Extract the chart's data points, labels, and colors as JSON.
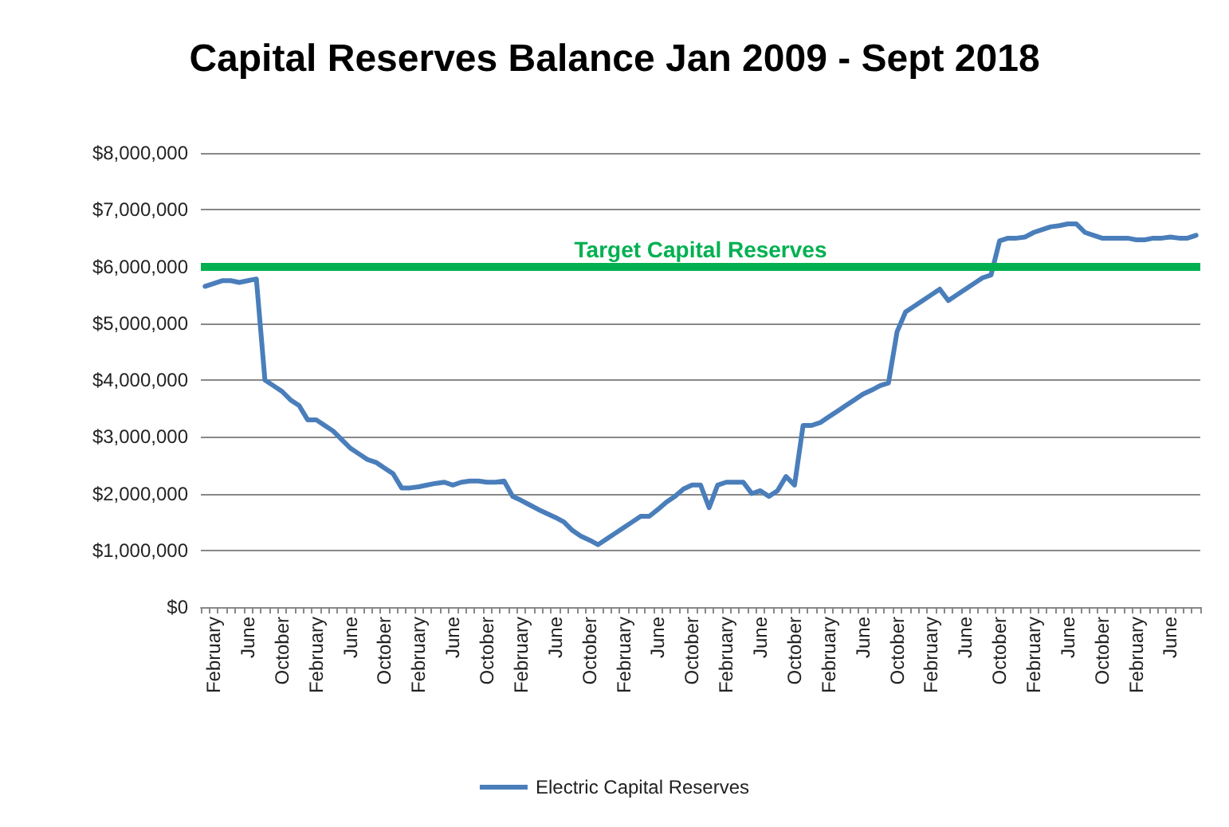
{
  "chart_data": {
    "type": "line",
    "title": "Capital Reserves Balance Jan 2009 - Sept 2018",
    "categories": [
      null,
      "February",
      null,
      null,
      null,
      "June",
      null,
      null,
      null,
      "October",
      null,
      null,
      null,
      "February",
      null,
      null,
      null,
      "June",
      null,
      null,
      null,
      "October",
      null,
      null,
      null,
      "February",
      null,
      null,
      null,
      "June",
      null,
      null,
      null,
      "October",
      null,
      null,
      null,
      "February",
      null,
      null,
      null,
      "June",
      null,
      null,
      null,
      "October",
      null,
      null,
      null,
      "February",
      null,
      null,
      null,
      "June",
      null,
      null,
      null,
      "October",
      null,
      null,
      null,
      "February",
      null,
      null,
      null,
      "June",
      null,
      null,
      null,
      "October",
      null,
      null,
      null,
      "February",
      null,
      null,
      null,
      "June",
      null,
      null,
      null,
      "October",
      null,
      null,
      null,
      "February",
      null,
      null,
      null,
      "June",
      null,
      null,
      null,
      "October",
      null,
      null,
      null,
      "February",
      null,
      null,
      null,
      "June",
      null,
      null,
      null,
      "October",
      null,
      null,
      null,
      "February",
      null,
      null,
      null,
      "June",
      null,
      null,
      null
    ],
    "series": [
      {
        "name": "Electric Capital Reserves",
        "color": "#4a7ebb",
        "values": [
          5650000,
          5700000,
          5750000,
          5750000,
          5720000,
          5750000,
          5780000,
          4000000,
          3900000,
          3800000,
          3650000,
          3550000,
          3300000,
          3300000,
          3200000,
          3100000,
          2950000,
          2800000,
          2700000,
          2600000,
          2550000,
          2450000,
          2350000,
          2100000,
          2100000,
          2120000,
          2150000,
          2180000,
          2200000,
          2150000,
          2200000,
          2220000,
          2220000,
          2200000,
          2200000,
          2220000,
          1950000,
          1880000,
          1800000,
          1720000,
          1650000,
          1580000,
          1500000,
          1350000,
          1250000,
          1180000,
          1100000,
          1200000,
          1300000,
          1400000,
          1500000,
          1600000,
          1600000,
          1720000,
          1850000,
          1950000,
          2080000,
          2150000,
          2150000,
          1750000,
          2150000,
          2200000,
          2200000,
          2200000,
          2000000,
          2050000,
          1950000,
          2050000,
          2300000,
          2150000,
          3200000,
          3200000,
          3250000,
          3350000,
          3450000,
          3550000,
          3650000,
          3750000,
          3820000,
          3900000,
          3950000,
          4850000,
          5200000,
          5300000,
          5400000,
          5500000,
          5600000,
          5400000,
          5500000,
          5600000,
          5700000,
          5800000,
          5850000,
          6450000,
          6500000,
          6500000,
          6520000,
          6600000,
          6650000,
          6700000,
          6720000,
          6750000,
          6750000,
          6600000,
          6550000,
          6500000,
          6500000,
          6500000,
          6500000,
          6470000,
          6470000,
          6500000,
          6500000,
          6520000,
          6500000,
          6500000,
          6550000
        ]
      }
    ],
    "ylim": [
      0,
      8000000
    ],
    "yticks": [
      {
        "value": 0,
        "label": "$0"
      },
      {
        "value": 1000000,
        "label": "$1,000,000"
      },
      {
        "value": 2000000,
        "label": "$2,000,000"
      },
      {
        "value": 3000000,
        "label": "$3,000,000"
      },
      {
        "value": 4000000,
        "label": "$4,000,000"
      },
      {
        "value": 5000000,
        "label": "$5,000,000"
      },
      {
        "value": 6000000,
        "label": "$6,000,000"
      },
      {
        "value": 7000000,
        "label": "$7,000,000"
      },
      {
        "value": 8000000,
        "label": "$8,000,000"
      }
    ],
    "ref_lines": [
      {
        "axis": "y",
        "value": 6000000,
        "label": "Target Capital Reserves",
        "color": "#00b050"
      }
    ],
    "grid": "y",
    "legend": "bottom",
    "marker": "none",
    "line_style": "solid"
  }
}
